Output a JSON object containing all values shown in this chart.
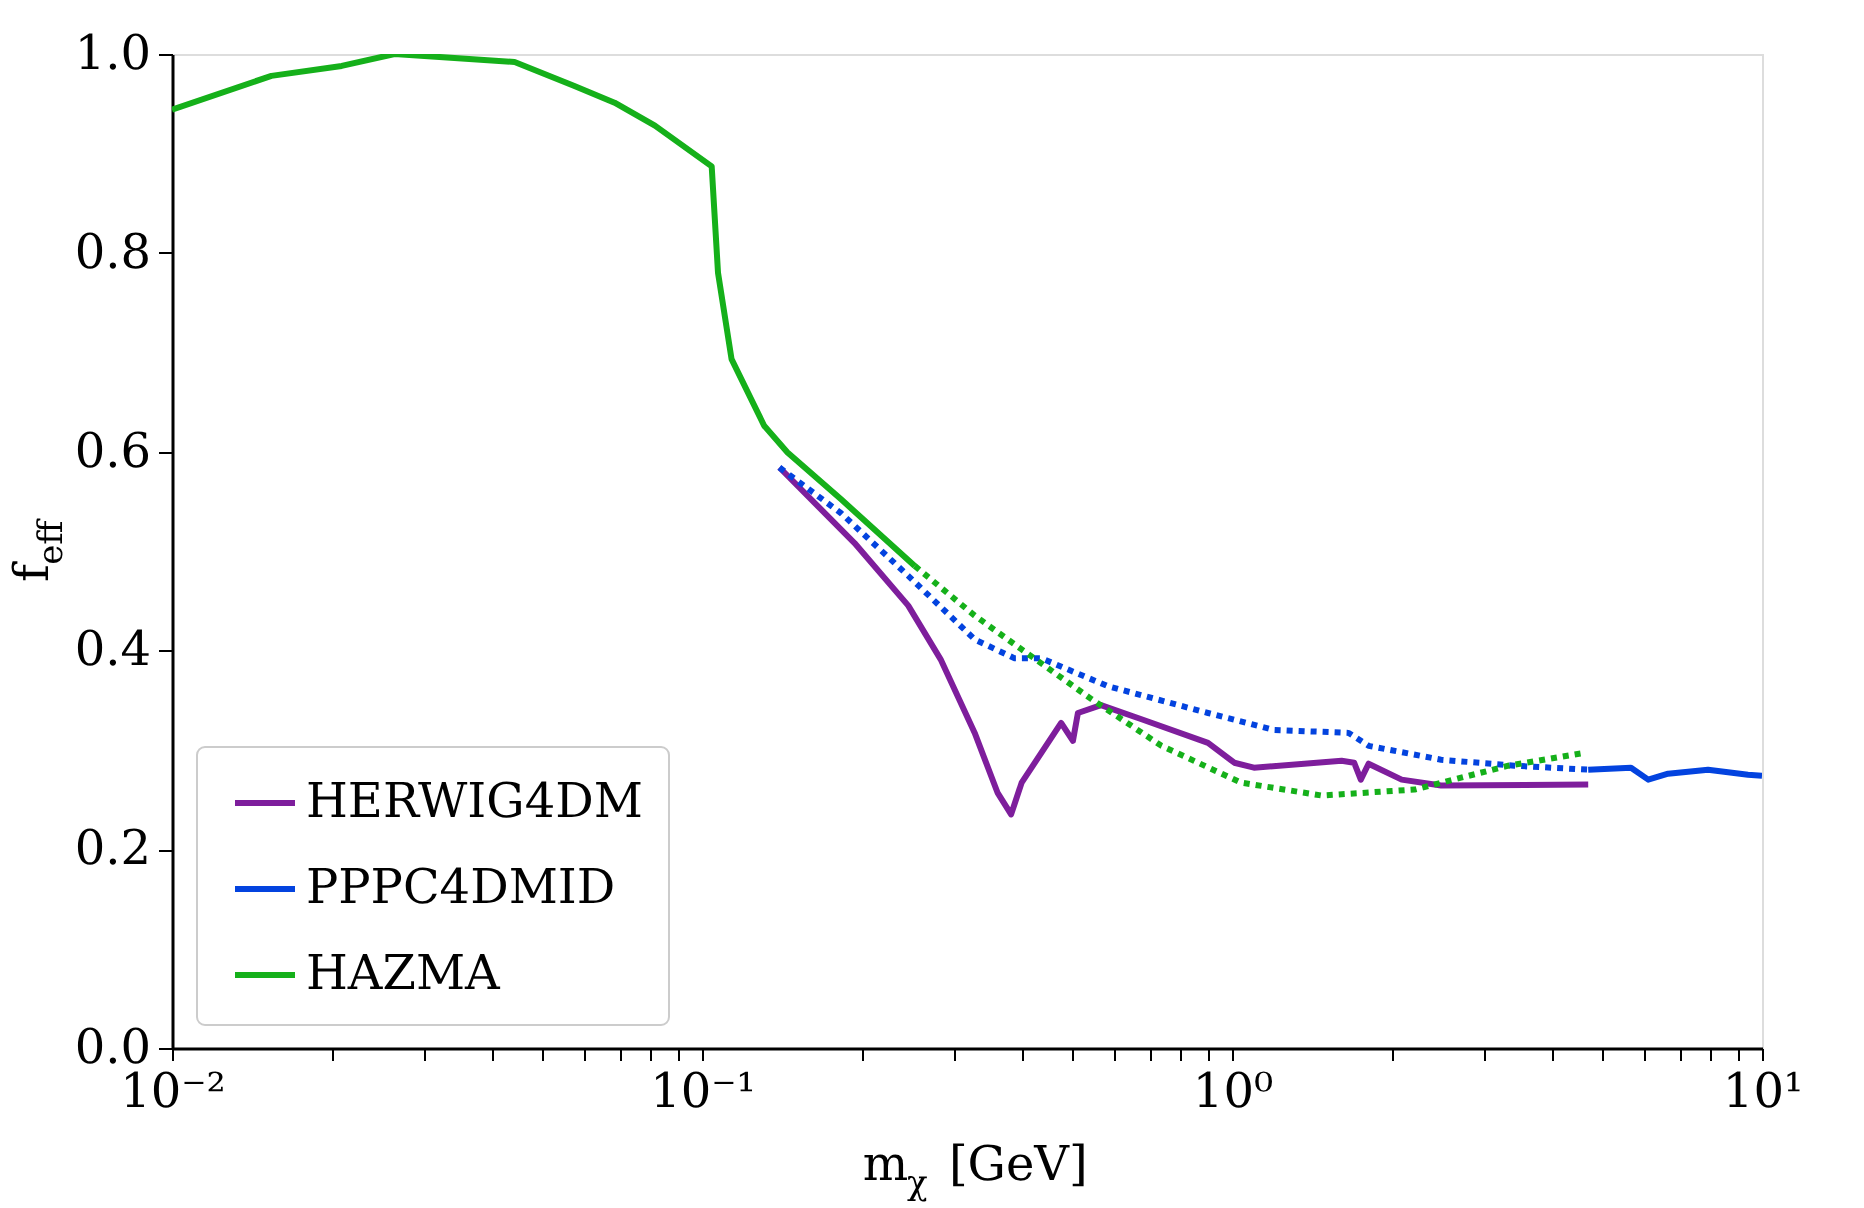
{
  "chart_data": {
    "type": "line",
    "xlabel": "m$_{χ}$ [GeV]",
    "ylabel": "f$_{eff}$",
    "log": "x",
    "xlim": [
      0.01,
      10
    ],
    "ylim": [
      0,
      1
    ],
    "xticks": [
      {
        "value": 0.01,
        "label": "10⁻²"
      },
      {
        "value": 0.02,
        "label": null
      },
      {
        "value": 0.03,
        "label": null
      },
      {
        "value": 0.04,
        "label": null
      },
      {
        "value": 0.05,
        "label": null
      },
      {
        "value": 0.06,
        "label": null
      },
      {
        "value": 0.07,
        "label": null
      },
      {
        "value": 0.08,
        "label": null
      },
      {
        "value": 0.09,
        "label": null
      },
      {
        "value": 0.1,
        "label": "10⁻¹"
      },
      {
        "value": 0.2,
        "label": null
      },
      {
        "value": 0.3,
        "label": null
      },
      {
        "value": 0.4,
        "label": null
      },
      {
        "value": 0.5,
        "label": null
      },
      {
        "value": 0.6,
        "label": null
      },
      {
        "value": 0.7,
        "label": null
      },
      {
        "value": 0.8,
        "label": null
      },
      {
        "value": 0.9,
        "label": null
      },
      {
        "value": 1,
        "label": "10⁰"
      },
      {
        "value": 2,
        "label": null
      },
      {
        "value": 3,
        "label": null
      },
      {
        "value": 4,
        "label": null
      },
      {
        "value": 5,
        "label": null
      },
      {
        "value": 6,
        "label": null
      },
      {
        "value": 7,
        "label": null
      },
      {
        "value": 8,
        "label": null
      },
      {
        "value": 9,
        "label": null
      },
      {
        "value": 10,
        "label": "10¹"
      }
    ],
    "yticks": [
      {
        "value": 0,
        "label": "0.0"
      },
      {
        "value": 0.2,
        "label": "0.2"
      },
      {
        "value": 0.4,
        "label": "0.4"
      },
      {
        "value": 0.6,
        "label": "0.6"
      },
      {
        "value": 0.8,
        "label": "0.8"
      },
      {
        "value": 1,
        "label": "1.0"
      }
    ],
    "grid": false,
    "legend": "bottom left",
    "marker": "none",
    "series": [
      {
        "name": "HERWIG4DM",
        "color": "#7e1e9c",
        "line_style": "solid",
        "x": [
          0.14,
          0.194,
          0.245,
          0.282,
          0.327,
          0.361,
          0.383,
          0.401,
          0.476,
          0.501,
          0.512,
          0.566,
          0.673,
          0.901,
          1.01,
          1.1,
          1.61,
          1.7,
          1.75,
          1.81,
          2.09,
          2.48,
          4.7
        ],
        "values": [
          0.584,
          0.508,
          0.445,
          0.391,
          0.317,
          0.257,
          0.235,
          0.267,
          0.327,
          0.309,
          0.337,
          0.345,
          0.331,
          0.307,
          0.287,
          0.282,
          0.289,
          0.287,
          0.27,
          0.286,
          0.27,
          0.264,
          0.265
        ]
      },
      {
        "name": "PPPC4DMID",
        "color": "#0343df",
        "line_style": "solid",
        "x": [
          4.7,
          5.66,
          6.1,
          6.65,
          7.91,
          9.41,
          10
        ],
        "values": [
          0.28,
          0.282,
          0.27,
          0.276,
          0.28,
          0.275,
          0.274
        ]
      },
      {
        "name": "HAZMA",
        "color": "#15b01a",
        "line_style": "solid",
        "x": [
          0.01,
          0.0154,
          0.0209,
          0.0263,
          0.0443,
          0.0573,
          0.0684,
          0.0815,
          0.1043,
          0.1072,
          0.1137,
          0.131,
          0.145,
          0.183,
          0.252
        ],
        "values": [
          0.944,
          0.978,
          0.988,
          1.0,
          0.992,
          0.968,
          0.951,
          0.928,
          0.887,
          0.78,
          0.693,
          0.626,
          0.599,
          0.552,
          0.485
        ]
      },
      {
        "color": "#0343df",
        "line_style": "dotted",
        "x": [
          0.14,
          0.183,
          0.245,
          0.327,
          0.389,
          0.437,
          0.583,
          0.901,
          1.2,
          1.66,
          1.81,
          2.48,
          3.41,
          4.7
        ],
        "values": [
          0.584,
          0.538,
          0.475,
          0.411,
          0.392,
          0.392,
          0.364,
          0.337,
          0.32,
          0.317,
          0.304,
          0.29,
          0.284,
          0.28
        ]
      },
      {
        "color": "#15b01a",
        "line_style": "dotted",
        "x": [
          0.252,
          0.327,
          0.401,
          0.543,
          0.736,
          1.04,
          1.475,
          2.21,
          3.32,
          4.63
        ],
        "values": [
          0.485,
          0.435,
          0.401,
          0.351,
          0.304,
          0.267,
          0.254,
          0.26,
          0.284,
          0.297
        ]
      }
    ]
  }
}
